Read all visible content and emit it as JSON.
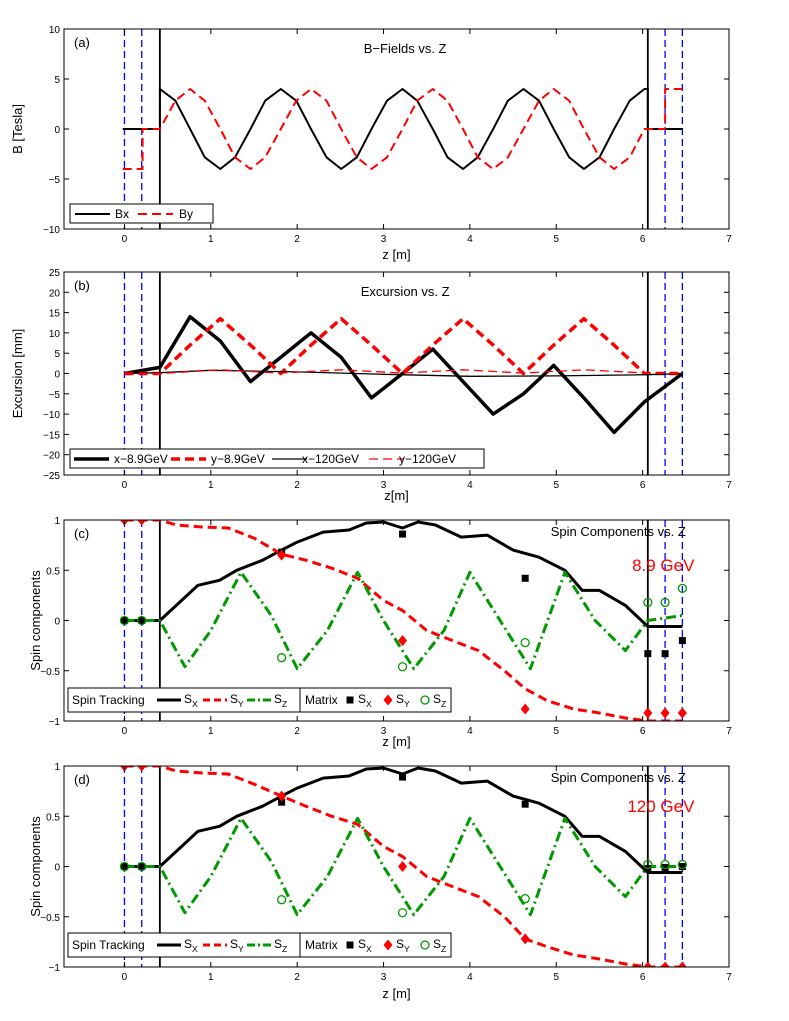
{
  "chart_data": [
    {
      "panel_label": "(a)",
      "type": "line",
      "title": "B−Fields vs. Z",
      "xlabel": "z [m]",
      "ylabel": "B [Tesla]",
      "xlim": [
        -0.7,
        7.0
      ],
      "ylim": [
        -10,
        10
      ],
      "xticks": [
        "0",
        "1",
        "2",
        "3",
        "4",
        "5",
        "6",
        "7"
      ],
      "yticks": [
        "−10",
        "−5",
        "0",
        "5",
        "10"
      ],
      "grid": false,
      "legend": {
        "location": "bottom-left",
        "entries": [
          {
            "label": "Bx",
            "color": "#000000",
            "dash": "solid"
          },
          {
            "label": "By",
            "color": "#ff0000",
            "dash": "dashed"
          }
        ]
      },
      "vertical_lines": {
        "blue_dashed_z": [
          0.0,
          0.2,
          6.26,
          6.46
        ],
        "black_solid_z": [
          0.41,
          6.06
        ]
      },
      "series": [
        {
          "name": "Bx",
          "color": "#000000",
          "dash": "solid",
          "width": 2,
          "x": [
            -0.02,
            0.21,
            0.21,
            0.41,
            0.41,
            0.59,
            0.76,
            0.93,
            1.11,
            1.28,
            1.46,
            1.63,
            1.81,
            1.99,
            2.16,
            2.34,
            2.51,
            2.69,
            2.86,
            3.04,
            3.22,
            3.39,
            3.57,
            3.74,
            3.92,
            4.09,
            4.27,
            4.44,
            4.62,
            4.8,
            4.97,
            5.15,
            5.32,
            5.5,
            5.67,
            5.85,
            6.02,
            6.06,
            6.06,
            6.26,
            6.26,
            6.46
          ],
          "y": [
            0,
            0,
            0,
            0,
            4,
            2.83,
            0,
            -2.83,
            -4,
            -2.83,
            0,
            2.83,
            4,
            2.83,
            0,
            -2.83,
            -4,
            -2.83,
            0,
            2.83,
            4,
            2.83,
            0,
            -2.83,
            -4,
            -2.83,
            0,
            2.83,
            4,
            2.83,
            0,
            -2.83,
            -4,
            -2.83,
            0,
            2.83,
            4,
            4,
            0,
            0,
            0,
            0
          ]
        },
        {
          "name": "By",
          "color": "#ff0000",
          "dash": "dashed",
          "width": 2,
          "x": [
            -0.02,
            0.21,
            0.21,
            0.41,
            0.41,
            0.59,
            0.76,
            0.93,
            1.11,
            1.28,
            1.46,
            1.63,
            1.81,
            1.99,
            2.16,
            2.34,
            2.51,
            2.69,
            2.86,
            3.04,
            3.22,
            3.39,
            3.57,
            3.74,
            3.92,
            4.09,
            4.27,
            4.44,
            4.62,
            4.8,
            4.97,
            5.15,
            5.32,
            5.5,
            5.67,
            5.85,
            6.02,
            6.06,
            6.06,
            6.26,
            6.26,
            6.46
          ],
          "y": [
            -4,
            -4,
            0,
            0,
            0,
            2.83,
            4,
            2.83,
            0,
            -2.83,
            -4,
            -2.83,
            0,
            2.83,
            4,
            2.83,
            0,
            -2.83,
            -4,
            -2.83,
            0,
            2.83,
            4,
            2.83,
            0,
            -2.83,
            -4,
            -2.83,
            0,
            2.83,
            4,
            2.83,
            0,
            -2.83,
            -4,
            -2.83,
            0,
            0,
            0,
            0,
            4,
            4
          ]
        }
      ]
    },
    {
      "panel_label": "(b)",
      "type": "line",
      "title": "Excursion vs. Z",
      "xlabel": "z[m]",
      "ylabel": "Excursion [mm]",
      "xlim": [
        -0.7,
        7.0
      ],
      "ylim": [
        -25,
        25
      ],
      "xticks": [
        "0",
        "1",
        "2",
        "3",
        "4",
        "5",
        "6",
        "7"
      ],
      "yticks": [
        "−25",
        "−20",
        "−15",
        "−10",
        "−5",
        "0",
        "5",
        "10",
        "15",
        "20",
        "25"
      ],
      "grid": false,
      "legend": {
        "location": "bottom",
        "entries": [
          {
            "label": "x−8.9GeV",
            "color": "#000000",
            "dash": "solid",
            "width": 3.5
          },
          {
            "label": "y−8.9GeV",
            "color": "#ff0000",
            "dash": "dashed",
            "width": 3.5
          },
          {
            "label": "x−120GeV",
            "color": "#000000",
            "dash": "solid",
            "width": 1.3
          },
          {
            "label": "y−120GeV",
            "color": "#ff0000",
            "dash": "dashed",
            "width": 1.3
          }
        ]
      },
      "vertical_lines": {
        "blue_dashed_z": [
          0.0,
          0.2,
          6.26,
          6.46
        ],
        "black_solid_z": [
          0.41,
          6.06
        ]
      },
      "series": [
        {
          "name": "x−8.9GeV",
          "color": "#000000",
          "dash": "solid",
          "width": 3.5,
          "x": [
            0,
            0.41,
            0.76,
            1.11,
            1.46,
            1.81,
            2.16,
            2.51,
            2.86,
            3.22,
            3.57,
            3.92,
            4.27,
            4.62,
            4.97,
            5.32,
            5.67,
            6.02,
            6.46
          ],
          "y": [
            0,
            1.5,
            14,
            8,
            -2,
            4,
            10,
            4,
            -6,
            0,
            6,
            -2,
            -10,
            -5,
            2,
            -6,
            -14.5,
            -7,
            0
          ]
        },
        {
          "name": "y−8.9GeV",
          "color": "#ff0000",
          "dash": "dashed",
          "width": 3.5,
          "x": [
            0,
            0.41,
            0.76,
            1.11,
            1.46,
            1.81,
            2.16,
            2.51,
            2.86,
            3.22,
            3.57,
            3.92,
            4.27,
            4.62,
            4.97,
            5.32,
            5.67,
            6.02,
            6.46
          ],
          "y": [
            0,
            0,
            7,
            13.5,
            7,
            0,
            7,
            13.5,
            7,
            0,
            7,
            13.5,
            7,
            0,
            7,
            13.5,
            7,
            0,
            0
          ]
        },
        {
          "name": "x−120GeV",
          "color": "#000000",
          "dash": "solid",
          "width": 1.3,
          "x": [
            0,
            0.41,
            1.0,
            2.0,
            3.0,
            4.0,
            5.0,
            6.06,
            6.46
          ],
          "y": [
            0,
            0.2,
            0.8,
            0.4,
            -0.2,
            -0.7,
            -0.6,
            -0.3,
            0
          ]
        },
        {
          "name": "y−120GeV",
          "color": "#ff0000",
          "dash": "dashed",
          "width": 1.3,
          "x": [
            0,
            0.41,
            1.11,
            1.81,
            2.51,
            3.22,
            3.92,
            4.62,
            5.32,
            6.06,
            6.46
          ],
          "y": [
            0,
            0,
            0.9,
            0.1,
            0.9,
            0.1,
            0.9,
            0.1,
            0.9,
            0.1,
            0
          ]
        }
      ]
    },
    {
      "panel_label": "(c)",
      "type": "line",
      "title": "Spin Components vs. Z",
      "annotation": "8.9 GeV",
      "xlabel": "z [m]",
      "ylabel": "Spin components",
      "xlim": [
        -0.7,
        7.0
      ],
      "ylim": [
        -1,
        1
      ],
      "xticks": [
        "0",
        "1",
        "2",
        "3",
        "4",
        "5",
        "6",
        "7"
      ],
      "yticks": [
        "−1",
        "−0.5",
        "0",
        "0.5",
        "1"
      ],
      "grid": false,
      "legend": {
        "location": "bottom-left",
        "groups": [
          {
            "title": "Spin Tracking",
            "entries": [
              "S_X",
              "S_Y",
              "S_Z"
            ]
          },
          {
            "title": "Matrix",
            "entries": [
              "S_X",
              "S_Y",
              "S_Z"
            ]
          }
        ]
      },
      "vertical_lines": {
        "blue_dashed_z": [
          0.0,
          0.2,
          6.26,
          6.46
        ],
        "black_solid_z": [
          0.41,
          6.06
        ]
      },
      "series": [
        {
          "name": "S_X",
          "role": "Spin Tracking",
          "color": "#000000",
          "dash": "solid",
          "width": 3,
          "x": [
            0,
            0.2,
            0.41,
            0.6,
            0.85,
            1.1,
            1.3,
            1.6,
            1.82,
            2.0,
            2.3,
            2.6,
            2.8,
            3.0,
            3.22,
            3.4,
            3.6,
            3.9,
            4.2,
            4.5,
            4.8,
            5.1,
            5.3,
            5.5,
            5.8,
            6.06,
            6.46
          ],
          "y": [
            0,
            0,
            0,
            0.15,
            0.35,
            0.4,
            0.5,
            0.6,
            0.7,
            0.78,
            0.88,
            0.9,
            0.97,
            0.98,
            0.92,
            0.98,
            0.95,
            0.83,
            0.85,
            0.7,
            0.63,
            0.5,
            0.3,
            0.3,
            0.15,
            -0.06,
            -0.06
          ]
        },
        {
          "name": "S_Y",
          "role": "Spin Tracking",
          "color": "#ff0000",
          "dash": "dashed",
          "width": 3,
          "x": [
            0,
            0.2,
            0.41,
            0.6,
            0.9,
            1.2,
            1.5,
            1.82,
            2.1,
            2.4,
            2.7,
            3.0,
            3.22,
            3.5,
            3.8,
            4.1,
            4.4,
            4.64,
            4.9,
            5.2,
            5.5,
            5.8,
            6.06,
            6.46
          ],
          "y": [
            1,
            1,
            1,
            0.95,
            0.93,
            0.92,
            0.82,
            0.66,
            0.6,
            0.52,
            0.42,
            0.2,
            0.1,
            -0.1,
            -0.2,
            -0.3,
            -0.5,
            -0.68,
            -0.8,
            -0.88,
            -0.92,
            -0.97,
            -1.0,
            -1.0
          ]
        },
        {
          "name": "S_Z",
          "role": "Spin Tracking",
          "color": "#009900",
          "dash": "dashdot",
          "width": 3,
          "x": [
            0,
            0.41,
            0.7,
            1.0,
            1.35,
            1.7,
            2.0,
            2.35,
            2.7,
            3.0,
            3.35,
            3.7,
            4.0,
            4.35,
            4.7,
            5.1,
            5.45,
            5.8,
            6.06,
            6.46
          ],
          "y": [
            0,
            0,
            -0.46,
            -0.1,
            0.48,
            0.05,
            -0.48,
            -0.1,
            0.48,
            0.0,
            -0.48,
            -0.1,
            0.48,
            0.0,
            -0.48,
            0.48,
            0.0,
            -0.3,
            0.0,
            0.05
          ]
        },
        {
          "name": "S_X",
          "role": "Matrix",
          "color": "#000000",
          "marker": "square",
          "x": [
            0,
            0.2,
            1.82,
            3.22,
            4.64,
            6.06,
            6.26,
            6.46
          ],
          "y": [
            0,
            0,
            0.68,
            0.86,
            0.42,
            -0.33,
            -0.33,
            -0.2
          ]
        },
        {
          "name": "S_Y",
          "role": "Matrix",
          "color": "#ff0000",
          "marker": "diamond",
          "x": [
            0,
            0.2,
            1.82,
            3.22,
            4.64,
            6.06,
            6.26,
            6.46
          ],
          "y": [
            1,
            1,
            0.65,
            -0.2,
            -0.88,
            -0.92,
            -0.92,
            -0.92
          ]
        },
        {
          "name": "S_Z",
          "role": "Matrix",
          "color": "#009900",
          "marker": "circle",
          "x": [
            0,
            0.2,
            1.82,
            3.22,
            4.64,
            6.06,
            6.26,
            6.46
          ],
          "y": [
            0,
            0,
            -0.37,
            -0.46,
            -0.22,
            0.18,
            0.18,
            0.32
          ]
        }
      ]
    },
    {
      "panel_label": "(d)",
      "type": "line",
      "title": "Spin Components vs. Z",
      "annotation": "120 GeV",
      "xlabel": "z [m]",
      "ylabel": "Spin components",
      "xlim": [
        -0.7,
        7.0
      ],
      "ylim": [
        -1,
        1
      ],
      "xticks": [
        "0",
        "1",
        "2",
        "3",
        "4",
        "5",
        "6",
        "7"
      ],
      "yticks": [
        "−1",
        "−0.5",
        "0",
        "0.5",
        "1"
      ],
      "grid": false,
      "legend": {
        "location": "bottom-left",
        "groups": [
          {
            "title": "Spin Tracking",
            "entries": [
              "S_X",
              "S_Y",
              "S_Z"
            ]
          },
          {
            "title": "Matrix",
            "entries": [
              "S_X",
              "S_Y",
              "S_Z"
            ]
          }
        ]
      },
      "vertical_lines": {
        "blue_dashed_z": [
          0.0,
          0.2,
          6.26,
          6.46
        ],
        "black_solid_z": [
          0.41,
          6.06
        ]
      },
      "series": [
        {
          "name": "S_X",
          "role": "Spin Tracking",
          "color": "#000000",
          "dash": "solid",
          "width": 3,
          "x": [
            0,
            0.2,
            0.41,
            0.6,
            0.85,
            1.1,
            1.3,
            1.6,
            1.82,
            2.0,
            2.3,
            2.6,
            2.8,
            3.0,
            3.22,
            3.4,
            3.6,
            3.9,
            4.2,
            4.5,
            4.8,
            5.1,
            5.3,
            5.5,
            5.8,
            6.06,
            6.46
          ],
          "y": [
            0,
            0,
            0,
            0.15,
            0.35,
            0.4,
            0.5,
            0.6,
            0.7,
            0.78,
            0.88,
            0.9,
            0.97,
            0.98,
            0.92,
            0.98,
            0.95,
            0.83,
            0.85,
            0.7,
            0.63,
            0.5,
            0.3,
            0.3,
            0.15,
            -0.06,
            -0.06
          ]
        },
        {
          "name": "S_Y",
          "role": "Spin Tracking",
          "color": "#ff0000",
          "dash": "dashed",
          "width": 3,
          "x": [
            0,
            0.2,
            0.41,
            0.6,
            0.9,
            1.2,
            1.5,
            1.82,
            2.1,
            2.4,
            2.7,
            3.0,
            3.22,
            3.5,
            3.8,
            4.1,
            4.4,
            4.64,
            4.9,
            5.2,
            5.5,
            5.8,
            6.06,
            6.46
          ],
          "y": [
            1,
            1,
            1,
            0.95,
            0.93,
            0.92,
            0.82,
            0.7,
            0.6,
            0.5,
            0.42,
            0.2,
            0.1,
            -0.1,
            -0.2,
            -0.3,
            -0.5,
            -0.72,
            -0.8,
            -0.88,
            -0.92,
            -0.97,
            -1.0,
            -1.0
          ]
        },
        {
          "name": "S_Z",
          "role": "Spin Tracking",
          "color": "#009900",
          "dash": "dashdot",
          "width": 3,
          "x": [
            0,
            0.41,
            0.7,
            1.0,
            1.35,
            1.7,
            2.0,
            2.35,
            2.7,
            3.0,
            3.35,
            3.7,
            4.0,
            4.35,
            4.7,
            5.1,
            5.45,
            5.8,
            6.06,
            6.46
          ],
          "y": [
            0,
            0,
            -0.46,
            -0.1,
            0.48,
            0.05,
            -0.48,
            -0.1,
            0.48,
            0.0,
            -0.48,
            -0.1,
            0.48,
            0.0,
            -0.48,
            0.48,
            0.0,
            -0.3,
            0.0,
            0.0
          ]
        },
        {
          "name": "S_X",
          "role": "Matrix",
          "color": "#000000",
          "marker": "square",
          "x": [
            0,
            0.2,
            1.82,
            3.22,
            4.64,
            6.06,
            6.26,
            6.46
          ],
          "y": [
            0,
            0,
            0.64,
            0.89,
            0.62,
            -0.02,
            -0.01,
            0.0
          ]
        },
        {
          "name": "S_Y",
          "role": "Matrix",
          "color": "#ff0000",
          "marker": "diamond",
          "x": [
            0,
            0.2,
            1.82,
            3.22,
            4.64,
            6.06,
            6.26,
            6.46
          ],
          "y": [
            1,
            1,
            0.7,
            0.0,
            -0.72,
            -1.0,
            -1.0,
            -1.0
          ]
        },
        {
          "name": "S_Z",
          "role": "Matrix",
          "color": "#009900",
          "marker": "circle",
          "x": [
            0,
            0.2,
            1.82,
            3.22,
            4.64,
            6.06,
            6.26,
            6.46
          ],
          "y": [
            0,
            0,
            -0.33,
            -0.46,
            -0.32,
            0.02,
            0.02,
            0.02
          ]
        }
      ]
    }
  ]
}
